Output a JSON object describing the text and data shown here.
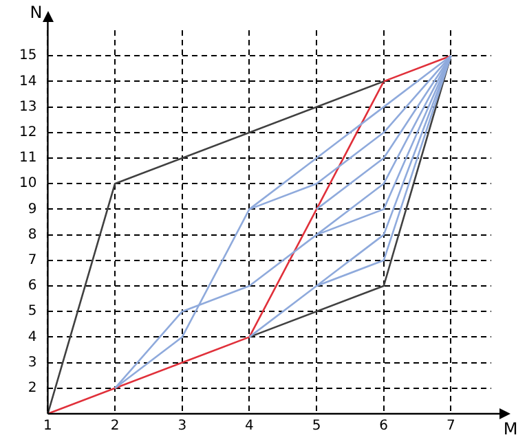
{
  "chart_data": {
    "type": "line",
    "xlabel": "M",
    "ylabel": "N",
    "xlim": [
      1,
      7.6
    ],
    "ylim": [
      1,
      16
    ],
    "xticks": [
      1,
      2,
      3,
      4,
      5,
      6,
      7
    ],
    "yticks": [
      2,
      3,
      4,
      5,
      6,
      7,
      8,
      9,
      10,
      11,
      12,
      13,
      14,
      15
    ],
    "grid": true,
    "legend": false,
    "marker": "none",
    "line_style": "solid",
    "series": [
      {
        "color": "#8faadc",
        "x": [
          2,
          3,
          4,
          5,
          6,
          7
        ],
        "values": [
          2,
          4,
          9,
          11,
          13,
          15
        ]
      },
      {
        "color": "#8faadc",
        "x": [
          2,
          3,
          4,
          5,
          6,
          7
        ],
        "values": [
          2,
          5,
          6,
          8,
          10,
          15
        ]
      },
      {
        "color": "#8faadc",
        "x": [
          4,
          5,
          6,
          7
        ],
        "values": [
          9,
          10,
          12,
          15
        ]
      },
      {
        "color": "#8faadc",
        "x": [
          5,
          6,
          7
        ],
        "values": [
          9,
          11,
          15
        ]
      },
      {
        "color": "#8faadc",
        "x": [
          4,
          5,
          6,
          7
        ],
        "values": [
          4,
          6,
          8,
          15
        ]
      },
      {
        "color": "#8faadc",
        "x": [
          5,
          6,
          7
        ],
        "values": [
          6,
          7,
          15
        ]
      },
      {
        "color": "#8faadc",
        "x": [
          5,
          6,
          7
        ],
        "values": [
          8,
          9,
          15
        ]
      },
      {
        "color": "#404040",
        "x": [
          1,
          2,
          6
        ],
        "values": [
          1,
          10,
          14
        ]
      },
      {
        "color": "#404040",
        "x": [
          4,
          6,
          7
        ],
        "values": [
          4,
          6,
          15
        ]
      },
      {
        "color": "#e0303a",
        "x": [
          1,
          4,
          6,
          7
        ],
        "values": [
          1,
          4,
          14,
          15
        ]
      }
    ]
  }
}
